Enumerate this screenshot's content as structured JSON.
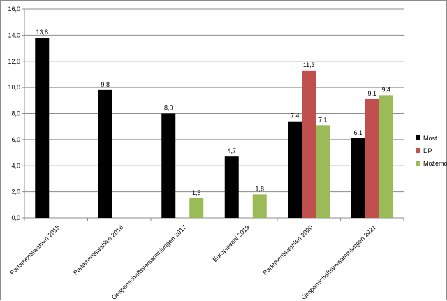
{
  "chart_data": {
    "type": "bar",
    "categories": [
      "Parlamentswahlen 2015",
      "Parlamentswahlen 2016",
      "Gespanschaftsversammlungen 2017",
      "Europawahl 2019",
      "Parlamentswahlen 2020",
      "Gespanschaftsversammlungen 2021"
    ],
    "series": [
      {
        "name": "Most",
        "color": "#000000",
        "values": [
          13.8,
          9.8,
          8.0,
          4.7,
          7.4,
          6.1
        ]
      },
      {
        "name": "DP",
        "color": "#c0504d",
        "values": [
          null,
          null,
          null,
          null,
          11.3,
          9.1
        ]
      },
      {
        "name": "Možemo",
        "color": "#9bbb59",
        "values": [
          null,
          null,
          1.5,
          1.8,
          7.1,
          9.4
        ]
      }
    ],
    "ylim": [
      0,
      16
    ],
    "yticks": [
      0,
      2,
      4,
      6,
      8,
      10,
      12,
      14,
      16
    ],
    "ytick_labels": [
      "0,0",
      "2,0",
      "4,0",
      "6,0",
      "8,0",
      "10,0",
      "12,0",
      "14,0",
      "16,0"
    ],
    "grid": true,
    "legend": "right",
    "title": "",
    "xlabel": "",
    "ylabel": ""
  }
}
